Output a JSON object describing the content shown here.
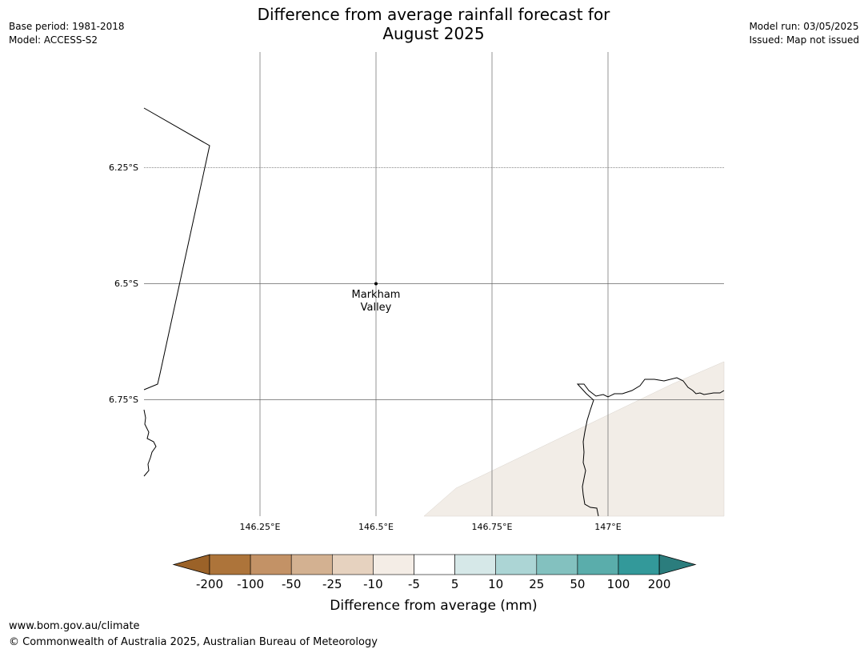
{
  "header": {
    "title_line1": "Difference from average rainfall forecast for",
    "title_line2": "August 2025",
    "base_period": "Base period: 1981-2018",
    "model": "Model: ACCESS-S2",
    "model_run": "Model run: 03/05/2025",
    "issued": "Issued: Map not issued"
  },
  "map": {
    "lat_labels": [
      "6.25°S",
      "6.5°S",
      "6.75°S"
    ],
    "lon_labels": [
      "146.25°E",
      "146.5°E",
      "146.75°E",
      "147°E"
    ],
    "place": {
      "name_line1": "Markham",
      "name_line2": "Valley"
    }
  },
  "legend": {
    "title": "Difference from average (mm)",
    "ticks": [
      "-200",
      "-100",
      "-50",
      "-25",
      "-10",
      "-5",
      "5",
      "10",
      "25",
      "50",
      "100",
      "200"
    ],
    "colors": [
      "#9b6228",
      "#ad743a",
      "#c39266",
      "#d3b191",
      "#e6d2bf",
      "#f4ede6",
      "#ffffff",
      "#d6e8e8",
      "#acd5d5",
      "#83c1bf",
      "#5aadab",
      "#33999a",
      "#2b7d7d"
    ]
  },
  "footer": {
    "url": "www.bom.gov.au/climate",
    "copyright": "© Commonwealth of Australia 2025, Australian Bureau of Meteorology"
  }
}
